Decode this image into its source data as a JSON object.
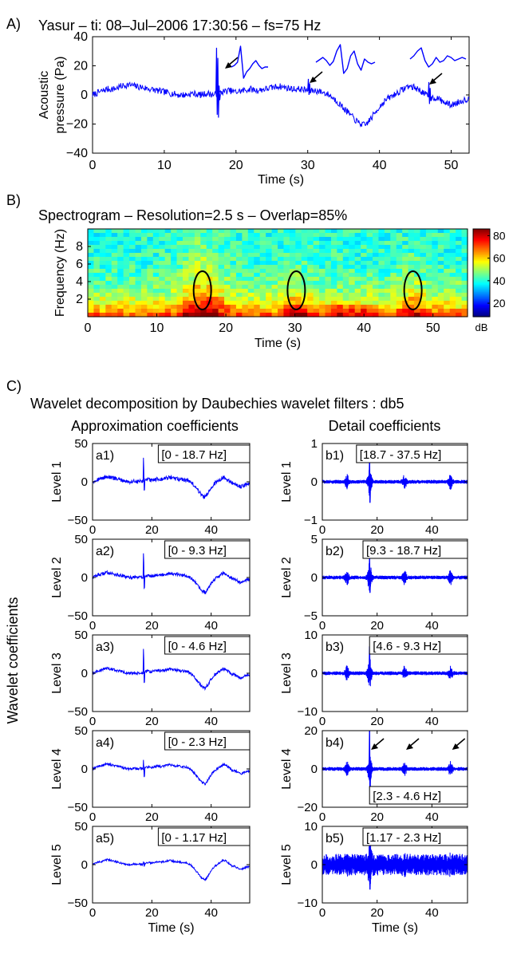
{
  "panel_labels": {
    "A": "A)",
    "B": "B)",
    "C": "C)"
  },
  "colors": {
    "signal": "#0000ff",
    "axis": "#000000",
    "ellipse": "#000000"
  },
  "chart_data": [
    {
      "id": "A",
      "type": "line",
      "title": "Yasur – ti: 08–Jul–2006 17:30:56 – fs=75 Hz",
      "ylabel_line1": "Acoustic",
      "ylabel_line2": "pressure (Pa)",
      "xlabel": "Time (s)",
      "xlim": [
        0,
        52.5
      ],
      "ylim": [
        -40,
        40
      ],
      "xticks": [
        "0",
        "10",
        "20",
        "30",
        "40",
        "50"
      ],
      "yticks": [
        "40",
        "20",
        "0",
        "−20",
        "−40"
      ],
      "series": [
        {
          "x": [
            0,
            1,
            2,
            3,
            4,
            5,
            6,
            7,
            8,
            9,
            10,
            11,
            12,
            13,
            14,
            15,
            16,
            17,
            18,
            19,
            20,
            21,
            22,
            23,
            24,
            25,
            26,
            27,
            28,
            29,
            30,
            31,
            32,
            33,
            34,
            35,
            36,
            37,
            38,
            39,
            40,
            41,
            42,
            43,
            44,
            45,
            46,
            47,
            48,
            49,
            50,
            51,
            52
          ],
          "y": [
            0,
            2,
            4,
            4,
            6,
            7,
            6,
            5,
            4,
            3,
            2,
            1,
            0,
            0,
            1,
            0,
            1,
            0,
            2,
            3,
            2,
            3,
            4,
            3,
            4,
            5,
            6,
            5,
            4,
            4,
            3,
            3,
            2,
            0,
            -4,
            -9,
            -14,
            -19,
            -21,
            -15,
            -8,
            -3,
            0,
            3,
            6,
            5,
            2,
            -2,
            -2,
            -5,
            -7,
            -5,
            -3
          ]
        }
      ],
      "spikes": [
        {
          "x": 17.2,
          "values": [
            0,
            32,
            -14,
            25,
            -16,
            6,
            -4,
            0
          ]
        },
        {
          "x": 30.0,
          "values": [
            0,
            8,
            -3,
            5,
            -2,
            0
          ]
        },
        {
          "x": 46.8,
          "values": [
            0,
            10,
            -5,
            6,
            -3,
            0
          ]
        }
      ],
      "annotation_arrows_at_x": [
        17.2,
        30.0,
        46.8
      ],
      "inset_waveforms": 3
    },
    {
      "id": "B",
      "type": "heatmap",
      "title": "Spectrogram – Resolution=2.5 s – Overlap=85%",
      "ylabel": "Frequency (Hz)",
      "xlabel": "Time (s)",
      "xlim": [
        0,
        55
      ],
      "ylim": [
        0,
        10
      ],
      "xticks": [
        "0",
        "10",
        "20",
        "30",
        "40",
        "50"
      ],
      "yticks": [
        "8",
        "6",
        "4",
        "2"
      ],
      "colorbar": {
        "ticks": [
          "80",
          "60",
          "40",
          "20"
        ],
        "unit": "dB",
        "range": [
          8,
          86
        ]
      },
      "highlighted_events_time_s": [
        16.6,
        30.2,
        47.1
      ],
      "highlighted_events_freq_hz": [
        3,
        3,
        3
      ]
    }
  ],
  "wavelet": {
    "section_title": "Wavelet decomposition by Daubechies wavelet filters : db5",
    "col_titles": [
      "Approximation coefficients",
      "Detail coefficients"
    ],
    "y_axis_title": "Wavelet coefficients",
    "xlabel": "Time (s)",
    "xticks": [
      "0",
      "20",
      "40"
    ],
    "xlim": [
      0,
      53
    ],
    "levels": [
      {
        "level_label": "Level 1",
        "a": {
          "tag": "a1)",
          "band": "[0 - 18.7 Hz]",
          "ylim": [
            -50,
            50
          ],
          "yticks": [
            "50",
            "0",
            "−50"
          ]
        },
        "b": {
          "tag": "b1)",
          "band": "[18.7 - 37.5 Hz]",
          "ylim": [
            -1,
            1
          ],
          "yticks": [
            "1",
            "0",
            "−1"
          ],
          "spike_peak": [
            0.55,
            -0.55
          ]
        }
      },
      {
        "level_label": "Level 2",
        "a": {
          "tag": "a2)",
          "band": "[0 - 9.3 Hz]",
          "ylim": [
            -50,
            50
          ],
          "yticks": [
            "50",
            "0",
            "−50"
          ]
        },
        "b": {
          "tag": "b2)",
          "band": "[9.3 - 18.7 Hz]",
          "ylim": [
            -5,
            5
          ],
          "yticks": [
            "5",
            "0",
            "−5"
          ],
          "spike_peak": [
            2.5,
            -2.0
          ]
        }
      },
      {
        "level_label": "Level 3",
        "a": {
          "tag": "a3)",
          "band": "[0 - 4.6 Hz]",
          "ylim": [
            -50,
            50
          ],
          "yticks": [
            "50",
            "0",
            "−50"
          ]
        },
        "b": {
          "tag": "b3)",
          "band": "[4.6 - 9.3 Hz]",
          "ylim": [
            -10,
            10
          ],
          "yticks": [
            "10",
            "0",
            "−10"
          ],
          "spike_peak": [
            7,
            -2
          ]
        }
      },
      {
        "level_label": "Level 4",
        "a": {
          "tag": "a4)",
          "band": "[0 - 2.3 Hz]",
          "ylim": [
            -50,
            50
          ],
          "yticks": [
            "50",
            "0",
            "−50"
          ]
        },
        "b": {
          "tag": "b4)",
          "band": "[2.3 - 4.6 Hz]",
          "ylim": [
            -20,
            20
          ],
          "yticks": [
            "20",
            "0",
            "−20"
          ],
          "spike_peak": [
            20,
            -16
          ],
          "arrows_at_x": [
            17.2,
            30.0,
            46.8
          ]
        }
      },
      {
        "level_label": "Level 5",
        "a": {
          "tag": "a5)",
          "band": "[0 - 1.17 Hz]",
          "ylim": [
            -50,
            50
          ],
          "yticks": [
            "50",
            "0",
            "−50"
          ]
        },
        "b": {
          "tag": "b5)",
          "band": "[1.17 - 2.3 Hz]",
          "ylim": [
            -10,
            10
          ],
          "yticks": [
            "10",
            "0",
            "−10"
          ],
          "spike_peak": [
            6,
            -6.5
          ]
        }
      }
    ]
  }
}
